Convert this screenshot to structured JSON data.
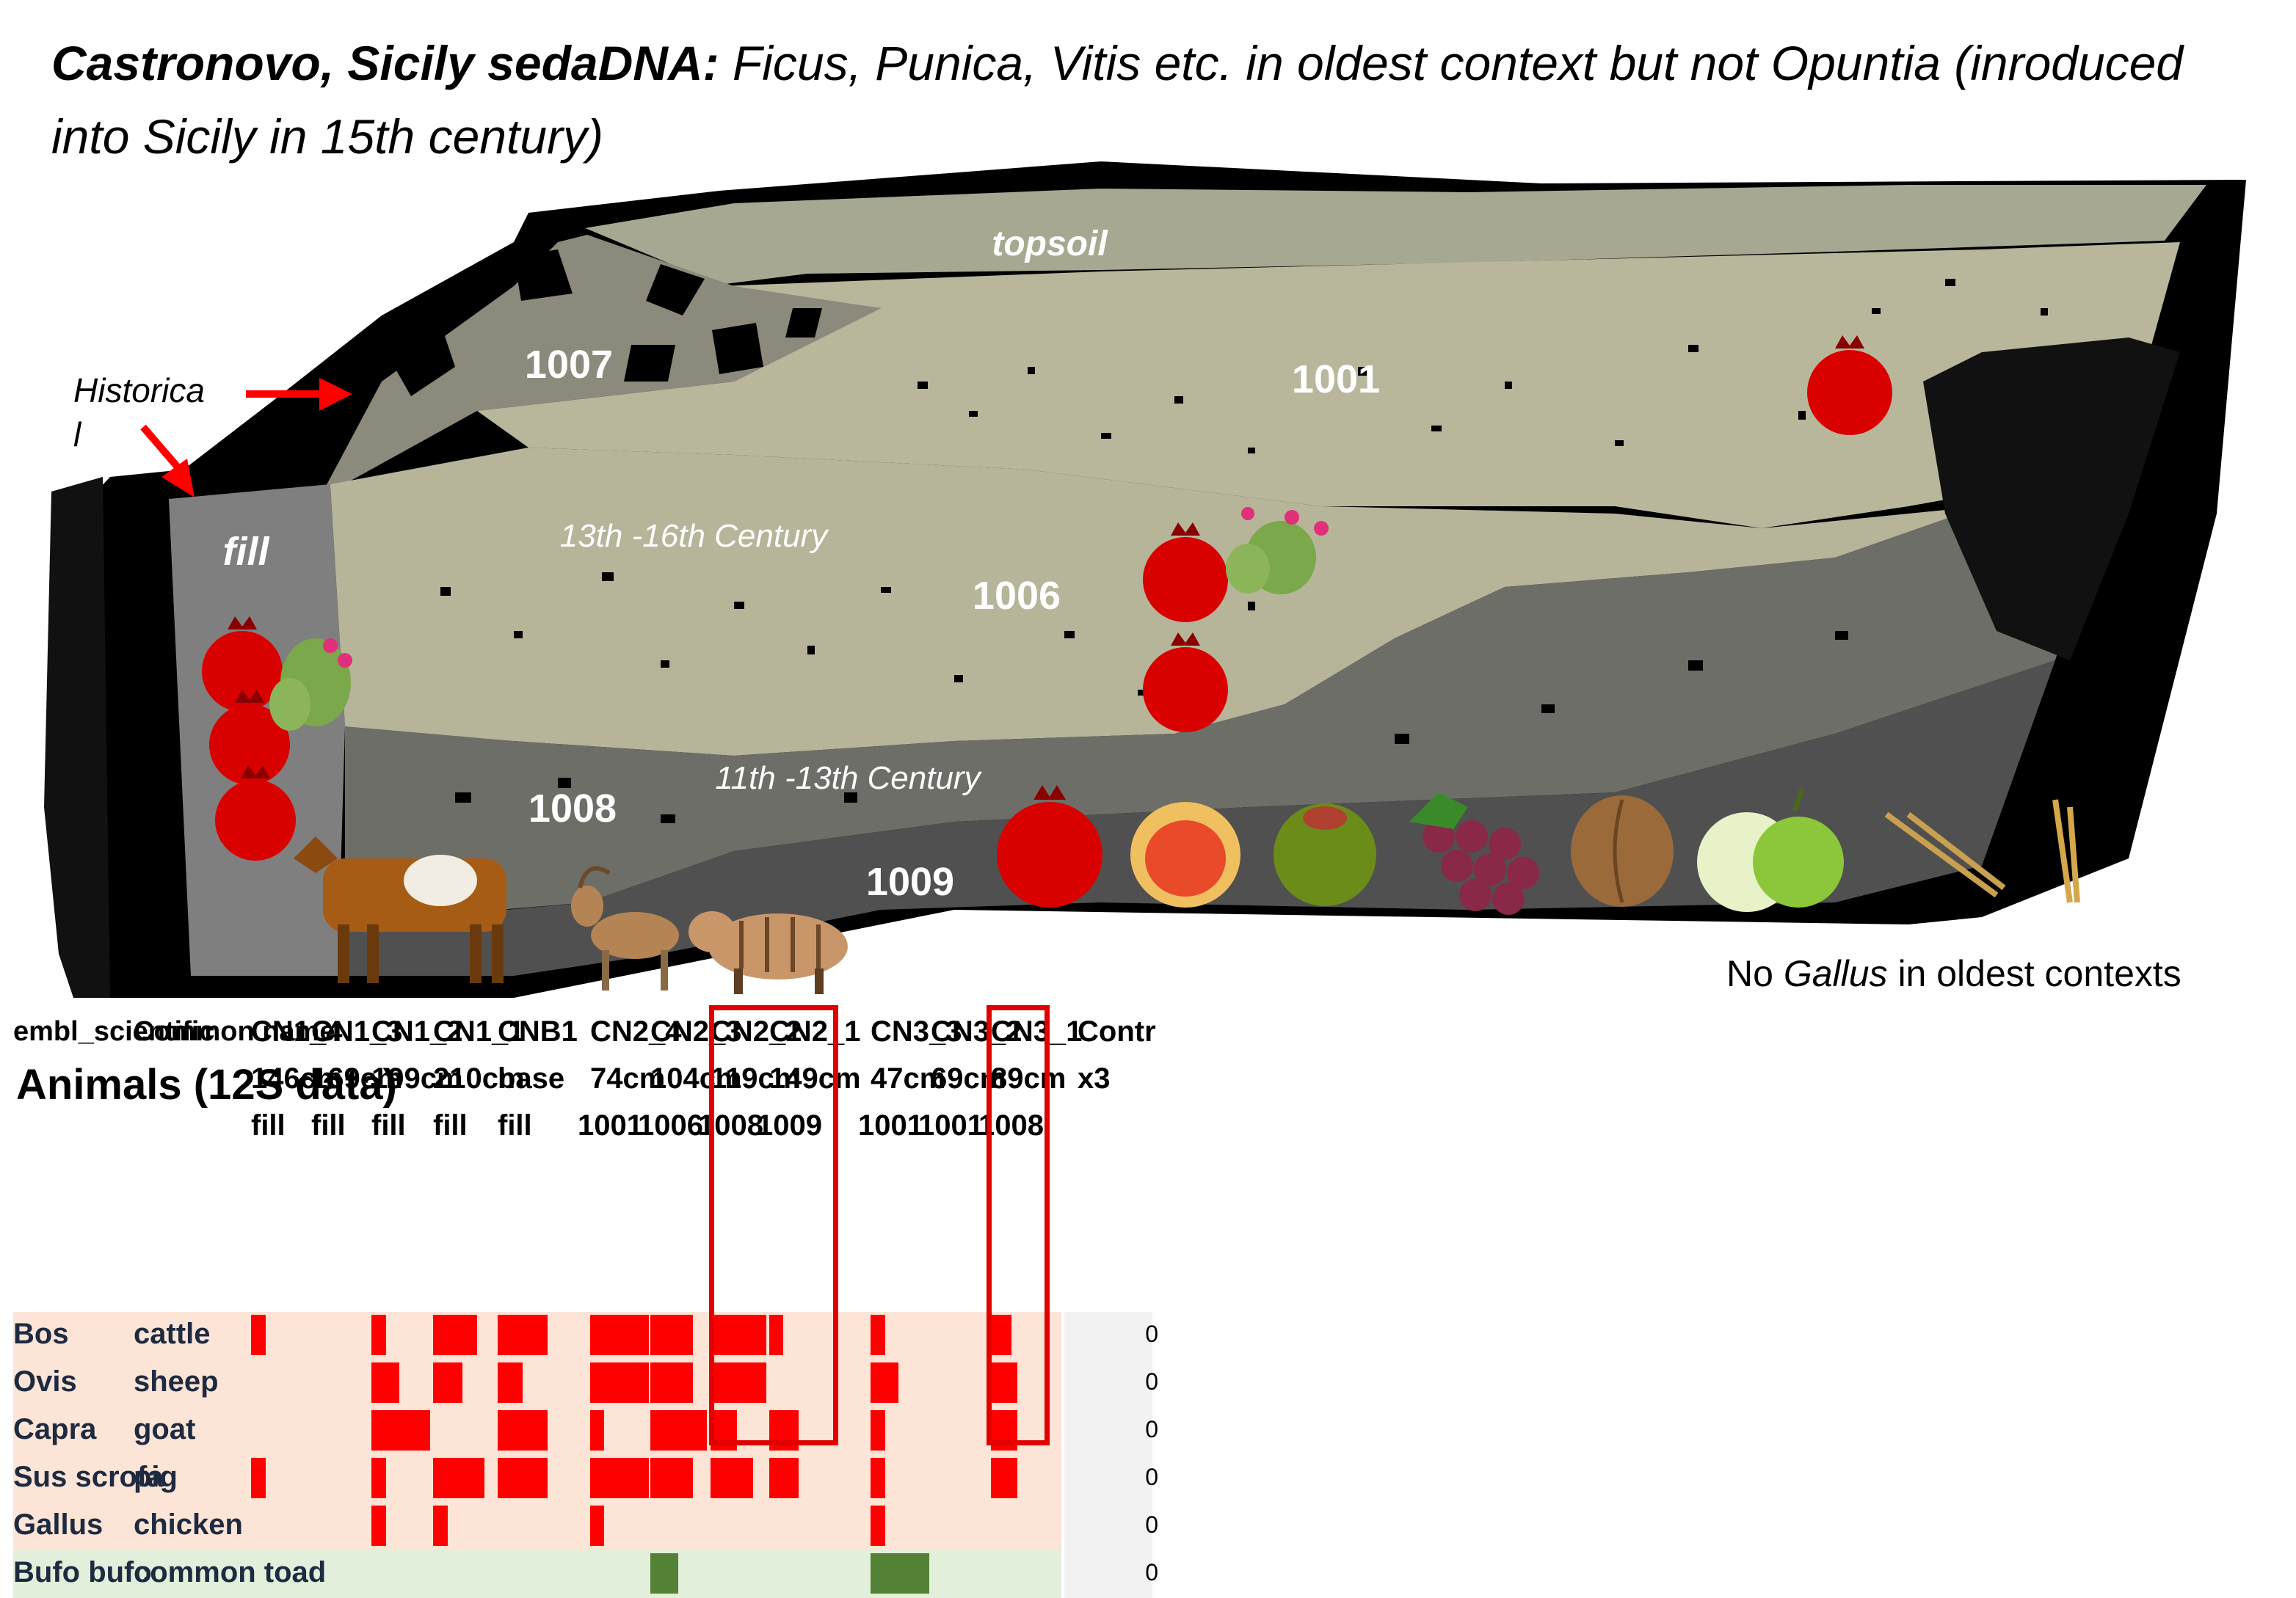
{
  "title": {
    "bold": "Castronovo, Sicily sedaDNA:",
    "rest": " Ficus, Punica, Vitis etc. in oldest context but not Opuntia (inroduced into Sicily in 15th century)"
  },
  "diagram": {
    "layer_labels": [
      "topsoil",
      "1007",
      "1001",
      "fill",
      "1006",
      "1008",
      "1009"
    ],
    "historical_label": "Historical",
    "asterisk": "*",
    "centuries": [
      "13th -16th Century",
      "11th -13th Century"
    ],
    "footnote_prefix": "No ",
    "footnote_italic": "Gallus",
    "footnote_suffix": " in oldest contexts",
    "icons": [
      "pomegranate-icon",
      "fig-icon",
      "olive-icon",
      "grape-icon",
      "walnut-icon",
      "apple-icon",
      "wheat-icon",
      "barley-icon",
      "prickly-pear-icon",
      "cattle-icon",
      "goat-icon",
      "boar-icon"
    ]
  },
  "table": {
    "header_col1": "embl_scientific",
    "header_col2": "Common name",
    "section_title": "Animals (12S data)",
    "samples": [
      {
        "id": "CN1_4",
        "depth": "146cm",
        "context": "fill"
      },
      {
        "id": "CN1_3",
        "depth": "169cm",
        "context": "fill"
      },
      {
        "id": "CN1_2",
        "depth": "199cm",
        "context": "fill"
      },
      {
        "id": "CN1_1",
        "depth": "210cm",
        "context": "fill"
      },
      {
        "id": "CNB1",
        "depth": "base",
        "context": "fill"
      },
      {
        "id": "CN2_4",
        "depth": "74cm",
        "context": "1001"
      },
      {
        "id": "CN2_3",
        "depth": "104cm",
        "context": "1006"
      },
      {
        "id": "CN2_2",
        "depth": "119cm",
        "context": "1008"
      },
      {
        "id": "CN2_1",
        "depth": "149cm",
        "context": "1009"
      },
      {
        "id": "CN3_3",
        "depth": "47cm",
        "context": "1001"
      },
      {
        "id": "CN3_2",
        "depth": "69cm",
        "context": "1001"
      },
      {
        "id": "CN3_1",
        "depth": "89cm",
        "context": "1008"
      }
    ],
    "control": {
      "id": "Contr",
      "depth": "x3"
    },
    "rows": [
      {
        "sci": "Bos",
        "common": "cattle",
        "control": "0",
        "bars": [
          0.25,
          0,
          0.25,
          0.75,
          0.85,
          1.0,
          0.72,
          0.95,
          0.24,
          0.25,
          0,
          0.35
        ]
      },
      {
        "sci": "Ovis",
        "common": "sheep",
        "control": "0",
        "bars": [
          0,
          0,
          0.48,
          0.5,
          0.42,
          1.0,
          0.72,
          0.95,
          0,
          0.48,
          0,
          0.45
        ]
      },
      {
        "sci": "Capra",
        "common": "goat",
        "control": "0",
        "bars": [
          0,
          0,
          1.0,
          0,
          0.85,
          0.24,
          0.96,
          0.45,
          0.5,
          0.25,
          0,
          0.45
        ]
      },
      {
        "sci": "Sus scrofa",
        "common": "pig",
        "control": "0",
        "bars": [
          0.25,
          0,
          0.25,
          0.87,
          0.85,
          1.0,
          0.72,
          0.72,
          0.5,
          0.25,
          0,
          0.45
        ]
      },
      {
        "sci": "Gallus",
        "common": "chicken",
        "control": "0",
        "bars": [
          0,
          0,
          0.25,
          0.25,
          0,
          0.24,
          0,
          0,
          0,
          0.25,
          0,
          0
        ]
      },
      {
        "sci": "Bufo bufo",
        "common": "common toad",
        "control": "0",
        "bars": [
          0,
          0,
          0,
          0,
          0,
          0,
          0.48,
          0,
          0,
          1.0,
          0,
          0
        ],
        "toad": true
      }
    ]
  }
}
